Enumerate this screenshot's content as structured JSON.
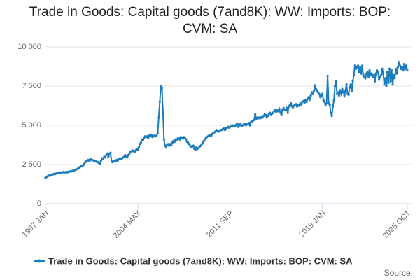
{
  "chart_data": {
    "type": "line",
    "title": "Trade in Goods: Capital goods (7and8K): WW: Imports: BOP: CVM: SA",
    "source": "Source:",
    "categories": [
      "1997 JAN",
      null,
      null,
      null,
      null,
      null,
      null,
      null,
      null,
      null,
      null,
      null,
      null,
      null,
      null,
      null,
      null,
      null,
      null,
      null,
      null,
      null,
      null,
      null,
      null,
      null,
      null,
      null,
      null,
      null,
      null,
      null,
      null,
      null,
      null,
      null,
      null,
      null,
      null,
      null,
      null,
      null,
      null,
      null,
      null,
      null,
      null,
      null,
      null,
      null,
      null,
      null,
      null,
      null,
      null,
      null,
      null,
      null,
      null,
      null,
      null,
      null,
      null,
      null,
      null,
      null,
      null,
      null,
      null,
      null,
      null,
      null,
      null,
      null,
      null,
      null,
      null,
      null,
      null,
      null,
      null,
      null,
      null,
      null,
      null,
      null,
      null,
      null,
      "2004 MAY",
      null,
      null,
      null,
      null,
      null,
      null,
      null,
      null,
      null,
      null,
      null,
      null,
      null,
      null,
      null,
      null,
      null,
      null,
      null,
      null,
      null,
      null,
      null,
      null,
      null,
      null,
      null,
      null,
      null,
      null,
      null,
      null,
      null,
      null,
      null,
      null,
      null,
      null,
      null,
      null,
      null,
      null,
      null,
      null,
      null,
      null,
      null,
      null,
      null,
      null,
      null,
      null,
      null,
      null,
      null,
      null,
      null,
      null,
      null,
      null,
      null,
      null,
      null,
      null,
      null,
      null,
      null,
      null,
      null,
      null,
      null,
      null,
      null,
      null,
      null,
      null,
      null,
      null,
      null,
      null,
      null,
      null,
      null,
      null,
      null,
      null,
      null,
      "2011 SEP",
      null,
      null,
      null,
      null,
      null,
      null,
      null,
      null,
      null,
      null,
      null,
      null,
      null,
      null,
      null,
      null,
      null,
      null,
      null,
      null,
      null,
      null,
      null,
      null,
      null,
      null,
      null,
      null,
      null,
      null,
      null,
      null,
      null,
      null,
      null,
      null,
      null,
      null,
      null,
      null,
      null,
      null,
      null,
      null,
      null,
      null,
      null,
      null,
      null,
      null,
      null,
      null,
      null,
      null,
      null,
      null,
      null,
      null,
      null,
      null,
      null,
      null,
      null,
      null,
      null,
      null,
      null,
      null,
      null,
      null,
      null,
      null,
      null,
      null,
      null,
      null,
      null,
      null,
      null,
      null,
      null,
      null,
      null,
      null,
      null,
      null,
      null,
      "2019 JAN",
      null,
      null,
      null,
      null,
      null,
      null,
      null,
      null,
      null,
      null,
      null,
      null,
      null,
      null,
      null,
      null,
      null,
      null,
      null,
      null,
      null,
      null,
      null,
      null,
      null,
      null,
      null,
      null,
      null,
      null,
      null,
      null,
      null,
      null,
      null,
      null,
      null,
      null,
      null,
      null,
      null,
      null,
      null,
      null,
      null,
      null,
      null,
      null,
      null,
      null,
      null,
      null,
      null,
      null,
      null,
      null,
      null,
      null,
      null,
      null,
      null,
      null,
      null,
      null,
      null,
      null,
      null,
      null,
      null,
      null,
      null,
      null,
      null,
      null,
      null,
      null,
      null,
      null,
      null,
      null,
      "2025 OCT"
    ],
    "series": [
      {
        "name": "Trade in Goods: Capital goods (7and8K): WW: Imports: BOP: CVM: SA",
        "color": "#1a7bbd",
        "values": [
          1650,
          1700,
          1750,
          1800,
          1780,
          1850,
          1820,
          1870,
          1900,
          1880,
          1920,
          1950,
          1950,
          1980,
          2000,
          1970,
          2000,
          2020,
          1990,
          2010,
          2030,
          2000,
          2040,
          2060,
          2050,
          2080,
          2100,
          2120,
          2150,
          2180,
          2200,
          2250,
          2300,
          2350,
          2400,
          2380,
          2450,
          2550,
          2650,
          2700,
          2750,
          2800,
          2720,
          2850,
          2800,
          2780,
          2750,
          2700,
          2700,
          2680,
          2650,
          2600,
          2550,
          2750,
          2900,
          2850,
          3000,
          2950,
          3100,
          3200,
          3000,
          3150,
          3250,
          2700,
          2650,
          2700,
          2750,
          2700,
          2800,
          2750,
          2850,
          2900,
          2850,
          2900,
          2950,
          3000,
          3100,
          3000,
          2950,
          3100,
          3200,
          3300,
          3350,
          3400,
          3350,
          3300,
          3400,
          3500,
          3450,
          3600,
          3800,
          3900,
          4100,
          4050,
          4200,
          4300,
          4250,
          4300,
          4200,
          4350,
          4300,
          4400,
          4250,
          4300,
          4350,
          4300,
          4350,
          4500,
          5500,
          6500,
          7500,
          7350,
          5900,
          4100,
          3700,
          3600,
          3750,
          3800,
          3700,
          3800,
          3750,
          3900,
          4000,
          3950,
          4100,
          4050,
          4150,
          4200,
          4100,
          4250,
          4200,
          4150,
          4250,
          4200,
          4100,
          3950,
          3900,
          3800,
          3700,
          3600,
          3650,
          3700,
          3500,
          3450,
          3600,
          3500,
          3550,
          3650,
          3700,
          3800,
          3900,
          4000,
          4100,
          4200,
          4250,
          4300,
          4350,
          4400,
          4300,
          4450,
          4500,
          4550,
          4600,
          4700,
          4650,
          4600,
          4650,
          4700,
          4700,
          4750,
          4800,
          4700,
          4800,
          4850,
          4900,
          4850,
          4900,
          4950,
          5000,
          4950,
          5000,
          4950,
          5050,
          5100,
          4900,
          5000,
          5100,
          4950,
          5000,
          5050,
          5100,
          5000,
          5050,
          5100,
          5150,
          5000,
          5200,
          5250,
          5300,
          5350,
          5700,
          5400,
          5500,
          5450,
          5500,
          5450,
          5550,
          5500,
          5600,
          5700,
          5650,
          5500,
          5600,
          5750,
          5800,
          5700,
          5750,
          5800,
          5900,
          6000,
          5850,
          5950,
          5900,
          6050,
          5800,
          5700,
          6000,
          6100,
          6000,
          5950,
          6100,
          5800,
          6200,
          6300,
          6400,
          6200,
          6150,
          6250,
          6300,
          6350,
          6200,
          6300,
          6250,
          6400,
          6300,
          6500,
          6550,
          6450,
          6600,
          6500,
          6700,
          6800,
          6650,
          6900,
          7100,
          7000,
          7200,
          7500,
          7300,
          7200,
          7100,
          7000,
          6800,
          6900,
          7000,
          6600,
          6500,
          6300,
          6400,
          8150,
          6400,
          6300,
          5800,
          5600,
          6200,
          6600,
          7500,
          7800,
          7000,
          7100,
          6900,
          7200,
          7000,
          7300,
          7100,
          6900,
          7200,
          7600,
          7000,
          6950,
          7400,
          7600,
          7200,
          7800,
          8200,
          8800,
          8600,
          8700,
          8800,
          8400,
          8700,
          8300,
          8800,
          8200,
          8100,
          8000,
          8300,
          8400,
          8100,
          8500,
          8200,
          8300,
          8100,
          8200,
          7800,
          8300,
          8500,
          8400,
          7900,
          8100,
          8200,
          8600,
          8300,
          7600,
          8000,
          7500,
          8400,
          7700,
          8600,
          7800,
          8500,
          7600,
          8200,
          8000,
          8600,
          8300,
          8700,
          9000,
          8800,
          8600,
          8700,
          8500,
          8900,
          8600,
          8800,
          8500
        ]
      }
    ],
    "ylim": [
      0,
      10000
    ],
    "yticks": [
      0,
      {
        "value": 2500,
        "label": "2 500"
      },
      {
        "value": 5000,
        "label": "5 000"
      },
      {
        "value": 7500,
        "label": "7 500"
      },
      {
        "value": 10000,
        "label": "10 000"
      }
    ],
    "grid": true
  }
}
